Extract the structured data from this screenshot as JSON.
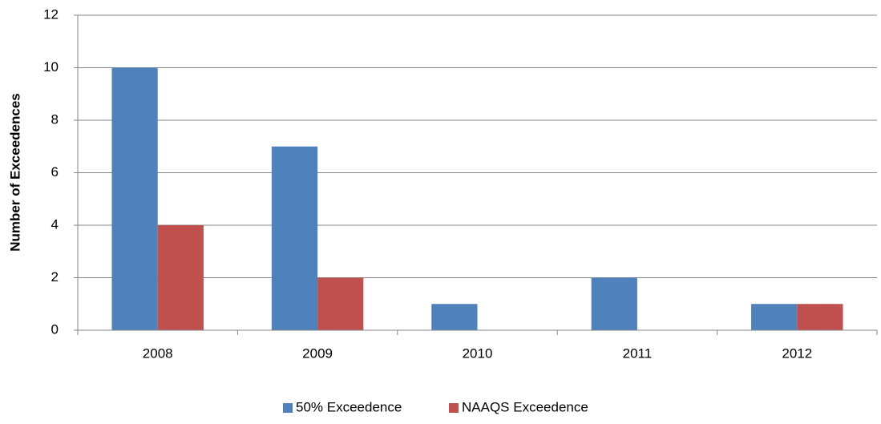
{
  "chart_data": {
    "type": "bar",
    "y_label": "Number of Exceedences",
    "categories": [
      "2008",
      "2009",
      "2010",
      "2011",
      "2012"
    ],
    "series": [
      {
        "name": "50% Exceedence",
        "color": "#4f81bd",
        "values": [
          10,
          7,
          1,
          2,
          1
        ]
      },
      {
        "name": "NAAQS Exceedence",
        "color": "#c0504d",
        "values": [
          4,
          2,
          0,
          0,
          1
        ]
      }
    ],
    "ylim": [
      0,
      12
    ],
    "yticks": [
      0,
      2,
      4,
      6,
      8,
      10,
      12
    ],
    "grid": true,
    "legend": "bottom"
  }
}
